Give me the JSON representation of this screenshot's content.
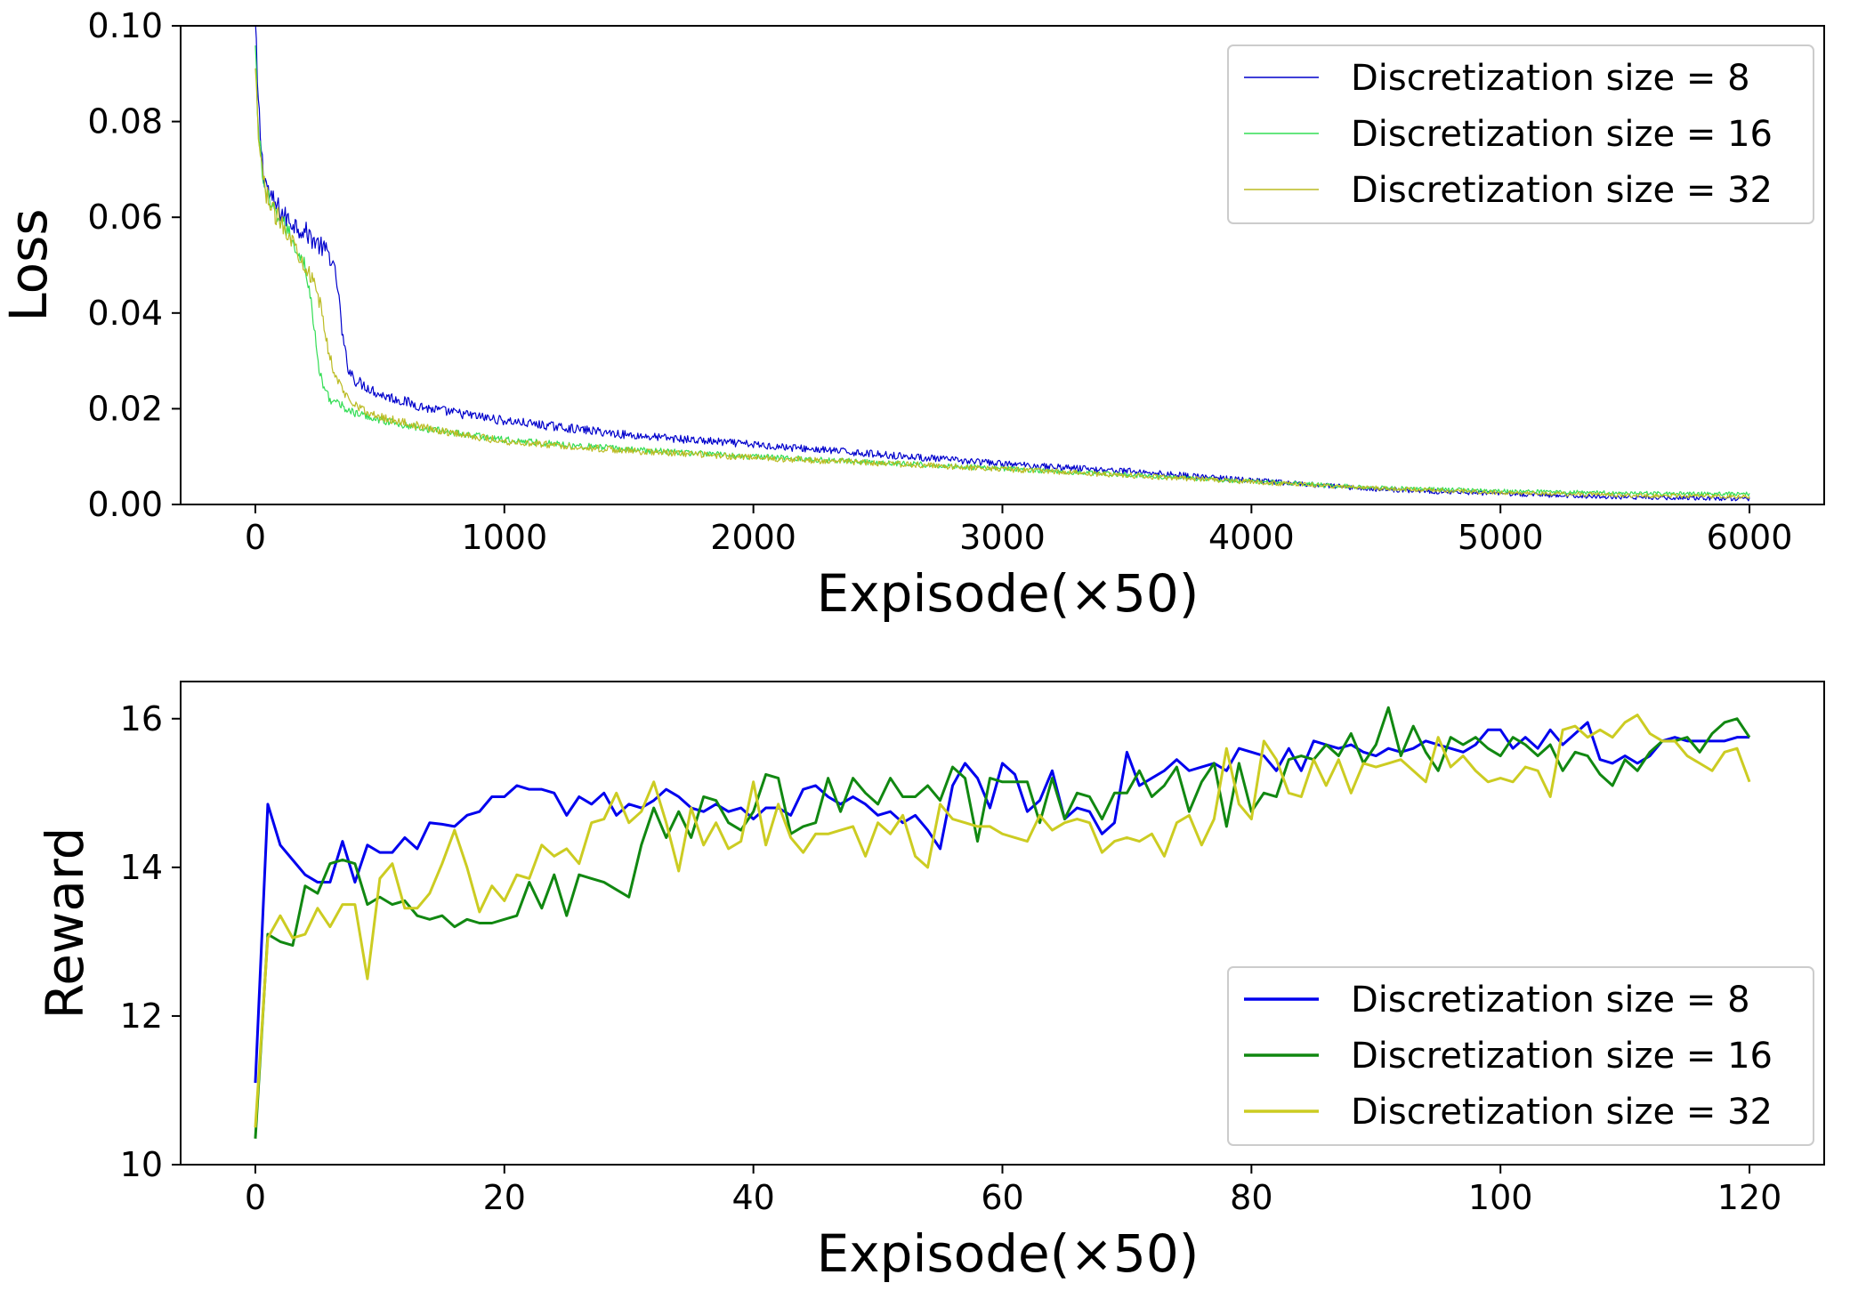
{
  "chart_data": [
    {
      "type": "line",
      "title": "",
      "xlabel": "Expisode(×50)",
      "ylabel": "Loss",
      "xlim": [
        -300,
        6300
      ],
      "ylim": [
        0.0,
        0.1
      ],
      "xticks": [
        0,
        1000,
        2000,
        3000,
        4000,
        5000,
        6000
      ],
      "xtick_labels": [
        "0",
        "1000",
        "2000",
        "3000",
        "4000",
        "5000",
        "6000"
      ],
      "yticks": [
        0.0,
        0.02,
        0.04,
        0.06,
        0.08,
        0.1
      ],
      "ytick_labels": [
        "0.00",
        "0.02",
        "0.04",
        "0.06",
        "0.08",
        "0.10"
      ],
      "legend_position": "top-right",
      "series": [
        {
          "name": "Discretization size = 8",
          "color": "#0000cc",
          "noise": 0.0012,
          "points": [
            [
              0,
              0.1
            ],
            [
              10,
              0.085
            ],
            [
              30,
              0.07
            ],
            [
              60,
              0.064
            ],
            [
              120,
              0.06
            ],
            [
              200,
              0.057
            ],
            [
              260,
              0.054
            ],
            [
              300,
              0.052
            ],
            [
              330,
              0.046
            ],
            [
              350,
              0.035
            ],
            [
              370,
              0.029
            ],
            [
              400,
              0.026
            ],
            [
              500,
              0.023
            ],
            [
              700,
              0.02
            ],
            [
              1000,
              0.0175
            ],
            [
              1500,
              0.0145
            ],
            [
              2000,
              0.0125
            ],
            [
              2500,
              0.0105
            ],
            [
              3000,
              0.0085
            ],
            [
              3500,
              0.007
            ],
            [
              4000,
              0.005
            ],
            [
              4500,
              0.0032
            ],
            [
              5000,
              0.0022
            ],
            [
              5500,
              0.0015
            ],
            [
              6000,
              0.0012
            ]
          ]
        },
        {
          "name": "Discretization size = 16",
          "color": "#33dd55",
          "noise": 0.001,
          "points": [
            [
              0,
              0.095
            ],
            [
              10,
              0.08
            ],
            [
              30,
              0.068
            ],
            [
              60,
              0.062
            ],
            [
              120,
              0.058
            ],
            [
              200,
              0.05
            ],
            [
              230,
              0.04
            ],
            [
              250,
              0.03
            ],
            [
              270,
              0.025
            ],
            [
              300,
              0.022
            ],
            [
              400,
              0.019
            ],
            [
              600,
              0.0165
            ],
            [
              1000,
              0.0135
            ],
            [
              1500,
              0.0115
            ],
            [
              2000,
              0.01
            ],
            [
              2500,
              0.0088
            ],
            [
              3000,
              0.0075
            ],
            [
              3500,
              0.0062
            ],
            [
              4000,
              0.0048
            ],
            [
              4500,
              0.0035
            ],
            [
              5000,
              0.0028
            ],
            [
              5500,
              0.0024
            ],
            [
              6000,
              0.0022
            ]
          ]
        },
        {
          "name": "Discretization size = 32",
          "color": "#bbbb22",
          "noise": 0.0011,
          "points": [
            [
              0,
              0.09
            ],
            [
              10,
              0.078
            ],
            [
              30,
              0.068
            ],
            [
              60,
              0.062
            ],
            [
              120,
              0.058
            ],
            [
              220,
              0.048
            ],
            [
              260,
              0.042
            ],
            [
              290,
              0.033
            ],
            [
              320,
              0.027
            ],
            [
              360,
              0.023
            ],
            [
              450,
              0.019
            ],
            [
              700,
              0.0158
            ],
            [
              1000,
              0.0132
            ],
            [
              1500,
              0.0112
            ],
            [
              2000,
              0.0098
            ],
            [
              2500,
              0.0086
            ],
            [
              3000,
              0.0074
            ],
            [
              3500,
              0.0061
            ],
            [
              4000,
              0.0047
            ],
            [
              4500,
              0.0034
            ],
            [
              5000,
              0.0025
            ],
            [
              5500,
              0.0019
            ],
            [
              6000,
              0.0016
            ]
          ]
        }
      ]
    },
    {
      "type": "line",
      "title": "",
      "xlabel": "Expisode(×50)",
      "ylabel": "Reward",
      "xlim": [
        -6,
        126
      ],
      "ylim": [
        10,
        16.5
      ],
      "xticks": [
        0,
        20,
        40,
        60,
        80,
        100,
        120
      ],
      "xtick_labels": [
        "0",
        "20",
        "40",
        "60",
        "80",
        "100",
        "120"
      ],
      "yticks": [
        10,
        12,
        14,
        16
      ],
      "ytick_labels": [
        "10",
        "12",
        "14",
        "16"
      ],
      "legend_position": "bottom-right",
      "x": [
        0,
        1,
        2,
        3,
        4,
        5,
        6,
        7,
        8,
        9,
        10,
        11,
        12,
        13,
        14,
        15,
        16,
        17,
        18,
        19,
        20,
        21,
        22,
        23,
        24,
        25,
        26,
        27,
        28,
        29,
        30,
        31,
        32,
        33,
        34,
        35,
        36,
        37,
        38,
        39,
        40,
        41,
        42,
        43,
        44,
        45,
        46,
        47,
        48,
        49,
        50,
        51,
        52,
        53,
        54,
        55,
        56,
        57,
        58,
        59,
        60,
        61,
        62,
        63,
        64,
        65,
        66,
        67,
        68,
        69,
        70,
        71,
        72,
        73,
        74,
        75,
        76,
        77,
        78,
        79,
        80,
        81,
        82,
        83,
        84,
        85,
        86,
        87,
        88,
        89,
        90,
        91,
        92,
        93,
        94,
        95,
        96,
        97,
        98,
        99,
        100,
        101,
        102,
        103,
        104,
        105,
        106,
        107,
        108,
        109,
        110,
        111,
        112,
        113,
        114,
        115,
        116,
        117,
        118,
        119,
        120
      ],
      "series": [
        {
          "name": "Discretization size = 8",
          "color": "#0000ee",
          "values": [
            11.1,
            14.85,
            14.3,
            14.1,
            13.9,
            13.8,
            13.8,
            14.35,
            13.8,
            14.3,
            14.2,
            14.2,
            14.4,
            14.25,
            14.6,
            14.58,
            14.55,
            14.7,
            14.75,
            14.95,
            14.95,
            15.1,
            15.05,
            15.05,
            15.0,
            14.7,
            14.95,
            14.85,
            15.0,
            14.7,
            14.85,
            14.8,
            14.9,
            15.05,
            14.95,
            14.8,
            14.75,
            14.85,
            14.75,
            14.8,
            14.65,
            14.8,
            14.8,
            14.7,
            15.05,
            15.1,
            14.95,
            14.85,
            14.95,
            14.85,
            14.7,
            14.75,
            14.6,
            14.7,
            14.5,
            14.25,
            15.1,
            15.4,
            15.2,
            14.8,
            15.4,
            15.25,
            14.75,
            14.9,
            15.3,
            14.65,
            14.8,
            14.75,
            14.45,
            14.6,
            15.55,
            15.1,
            15.2,
            15.3,
            15.45,
            15.3,
            15.35,
            15.4,
            15.3,
            15.6,
            15.55,
            15.5,
            15.3,
            15.6,
            15.3,
            15.7,
            15.65,
            15.6,
            15.65,
            15.55,
            15.5,
            15.6,
            15.55,
            15.6,
            15.7,
            15.65,
            15.6,
            15.55,
            15.65,
            15.85,
            15.85,
            15.6,
            15.75,
            15.6,
            15.85,
            15.65,
            15.8,
            15.95,
            15.45,
            15.4,
            15.5,
            15.4,
            15.5,
            15.7,
            15.75,
            15.7,
            15.7,
            15.7,
            15.7,
            15.75,
            15.75
          ]
        },
        {
          "name": "Discretization size = 16",
          "color": "#118811",
          "values": [
            10.35,
            13.1,
            13.0,
            12.95,
            13.75,
            13.65,
            14.05,
            14.1,
            14.05,
            13.5,
            13.6,
            13.5,
            13.55,
            13.35,
            13.3,
            13.35,
            13.2,
            13.3,
            13.25,
            13.25,
            13.3,
            13.35,
            13.8,
            13.45,
            13.9,
            13.35,
            13.9,
            13.85,
            13.8,
            13.7,
            13.6,
            14.3,
            14.8,
            14.4,
            14.75,
            14.4,
            14.95,
            14.9,
            14.6,
            14.5,
            14.75,
            15.25,
            15.2,
            14.45,
            14.55,
            14.6,
            15.2,
            14.75,
            15.2,
            15.0,
            14.85,
            15.2,
            14.95,
            14.95,
            15.1,
            14.9,
            15.35,
            15.2,
            14.35,
            15.2,
            15.15,
            15.15,
            15.15,
            14.6,
            15.2,
            14.65,
            15.0,
            14.95,
            14.65,
            15.0,
            15.0,
            15.3,
            14.95,
            15.1,
            15.35,
            14.75,
            15.15,
            15.4,
            14.55,
            15.4,
            14.75,
            15.0,
            14.95,
            15.45,
            15.5,
            15.45,
            15.65,
            15.5,
            15.8,
            15.4,
            15.65,
            16.15,
            15.5,
            15.9,
            15.55,
            15.3,
            15.75,
            15.65,
            15.75,
            15.6,
            15.5,
            15.75,
            15.65,
            15.5,
            15.65,
            15.3,
            15.55,
            15.5,
            15.25,
            15.1,
            15.45,
            15.3,
            15.55,
            15.7,
            15.7,
            15.75,
            15.55,
            15.8,
            15.95,
            16.0,
            15.75
          ]
        },
        {
          "name": "Discretization size = 32",
          "color": "#cccc22",
          "values": [
            10.5,
            13.05,
            13.35,
            13.05,
            13.1,
            13.45,
            13.2,
            13.5,
            13.5,
            12.5,
            13.85,
            14.05,
            13.45,
            13.45,
            13.65,
            14.05,
            14.5,
            14.0,
            13.4,
            13.75,
            13.55,
            13.9,
            13.85,
            14.3,
            14.15,
            14.25,
            14.05,
            14.6,
            14.65,
            15.0,
            14.6,
            14.75,
            15.15,
            14.6,
            13.95,
            14.8,
            14.3,
            14.6,
            14.25,
            14.35,
            15.15,
            14.3,
            14.85,
            14.4,
            14.2,
            14.45,
            14.45,
            14.5,
            14.55,
            14.15,
            14.6,
            14.45,
            14.7,
            14.15,
            14.0,
            14.85,
            14.65,
            14.6,
            14.55,
            14.55,
            14.45,
            14.4,
            14.35,
            14.7,
            14.5,
            14.6,
            14.65,
            14.6,
            14.2,
            14.35,
            14.4,
            14.35,
            14.45,
            14.15,
            14.6,
            14.7,
            14.3,
            14.65,
            15.6,
            14.85,
            14.65,
            15.7,
            15.45,
            15.0,
            14.95,
            15.45,
            15.1,
            15.45,
            15.0,
            15.4,
            15.35,
            15.4,
            15.45,
            15.3,
            15.15,
            15.75,
            15.35,
            15.5,
            15.3,
            15.15,
            15.2,
            15.15,
            15.35,
            15.3,
            14.95,
            15.85,
            15.9,
            15.75,
            15.85,
            15.75,
            15.95,
            16.05,
            15.8,
            15.7,
            15.7,
            15.5,
            15.4,
            15.3,
            15.55,
            15.6,
            15.15
          ]
        }
      ]
    }
  ]
}
